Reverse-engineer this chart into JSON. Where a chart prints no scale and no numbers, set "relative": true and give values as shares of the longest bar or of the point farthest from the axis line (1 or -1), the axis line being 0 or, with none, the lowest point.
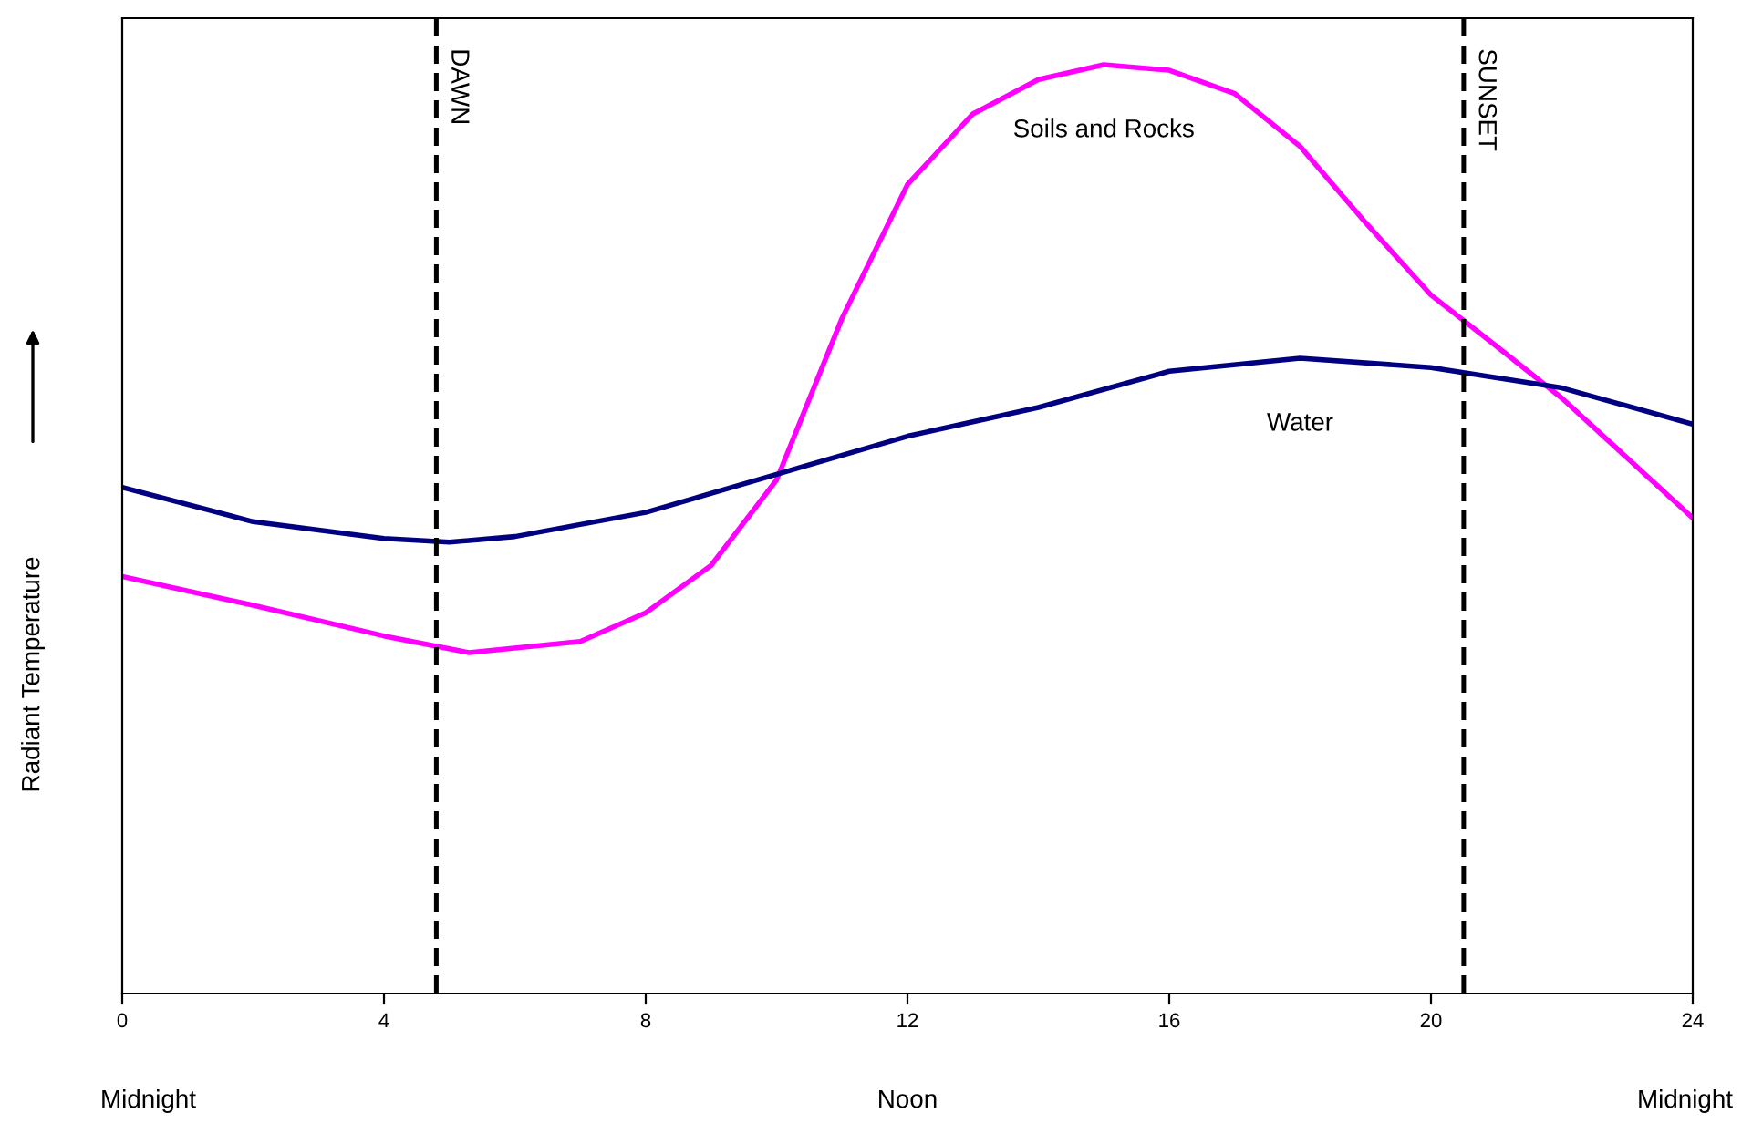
{
  "chart_data": {
    "type": "line",
    "relative": true,
    "ylabel": "Radiant Temperature",
    "xlim": [
      0,
      24
    ],
    "xticks": [
      0,
      4,
      8,
      12,
      16,
      20,
      24
    ],
    "grid": false,
    "legend": false,
    "marker": "none",
    "line_style": "solid",
    "series": [
      {
        "name": "Soils and Rocks",
        "color": "#ff00ff",
        "x": [
          0,
          2,
          4,
          5.3,
          7,
          8,
          9,
          10,
          11,
          12,
          13,
          14,
          15,
          16,
          17,
          18,
          19,
          20,
          21,
          22,
          24
        ],
        "values": [
          0.449,
          0.418,
          0.385,
          0.367,
          0.379,
          0.41,
          0.461,
          0.553,
          0.727,
          0.871,
          0.947,
          0.984,
          1.0,
          0.994,
          0.969,
          0.912,
          0.83,
          0.752,
          0.697,
          0.641,
          0.512
        ]
      },
      {
        "name": "Water",
        "color": "#000080",
        "x": [
          0,
          2,
          4,
          5,
          6,
          8,
          10,
          12,
          14,
          16,
          18,
          20,
          22,
          24
        ],
        "values": [
          0.545,
          0.508,
          0.49,
          0.486,
          0.492,
          0.518,
          0.559,
          0.6,
          0.631,
          0.67,
          0.684,
          0.674,
          0.652,
          0.613
        ]
      }
    ],
    "ref_lines": [
      {
        "axis": "x",
        "value": 4.8,
        "label": "DAWN",
        "color": "#000000",
        "line_style": "dashed"
      },
      {
        "axis": "x",
        "value": 20.5,
        "label": "SUNSET",
        "color": "#000000",
        "line_style": "dashed"
      }
    ],
    "annotations": [
      "Midnight",
      "Noon",
      "Midnight"
    ]
  }
}
